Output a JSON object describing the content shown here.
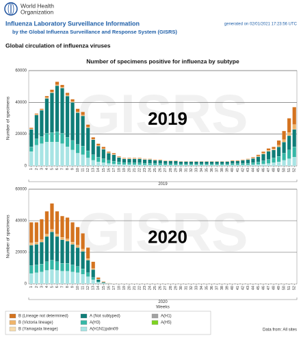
{
  "header": {
    "org_line1": "World Health",
    "org_line2": "Organization",
    "title": "Influenza Laboratory Surveillance Information",
    "subtitle": "by the Global Influenza Surveillance and Response System (GISRS)",
    "generated": "generated on 02/01/2021 17:23:56 UTC"
  },
  "section_title": "Global circulation of influenza viruses",
  "figure_title": "Number of specimens positive for influenza by subtype",
  "watermark": "GISRS",
  "legend": [
    {
      "name": "B (Lineage not determined)",
      "color": "#d4731f"
    },
    {
      "name": "B (Victoria lineage)",
      "color": "#efb46a"
    },
    {
      "name": "B (Yamagata lineage)",
      "color": "#f7dcae"
    },
    {
      "name": "A (Not subtyped)",
      "color": "#0f7d78"
    },
    {
      "name": "A(H3)",
      "color": "#35b7a6"
    },
    {
      "name": "A(H1N1)pdm09",
      "color": "#a8e4e4"
    },
    {
      "name": "A(H1)",
      "color": "#a3a3a3"
    },
    {
      "name": "A(H5)",
      "color": "#7ed321"
    }
  ],
  "footer": "Data from: All sites",
  "chart_data": [
    {
      "type": "bar",
      "stacked": true,
      "annotation": "2019",
      "xlabel": "2019",
      "ylabel": "Number of specimens",
      "categories": [
        "1",
        "2",
        "3",
        "4",
        "5",
        "6",
        "7",
        "8",
        "9",
        "10",
        "11",
        "12",
        "13",
        "14",
        "15",
        "16",
        "17",
        "18",
        "19",
        "20",
        "21",
        "22",
        "23",
        "24",
        "25",
        "26",
        "27",
        "28",
        "29",
        "30",
        "31",
        "32",
        "33",
        "34",
        "35",
        "36",
        "37",
        "38",
        "39",
        "40",
        "41",
        "42",
        "43",
        "44",
        "45",
        "46",
        "47",
        "48",
        "49",
        "50",
        "51",
        "52"
      ],
      "ylim": [
        0,
        60000
      ],
      "yticks": [
        0,
        20000,
        40000,
        60000
      ],
      "grid": true,
      "series": [
        {
          "color": "#a8e4e4",
          "values": [
            9000,
            13000,
            14000,
            15000,
            15000,
            15000,
            14000,
            12000,
            10000,
            8000,
            7000,
            5000,
            3500,
            2500,
            2000,
            1500,
            1200,
            1000,
            800,
            800,
            700,
            700,
            600,
            600,
            500,
            500,
            400,
            400,
            400,
            400,
            400,
            400,
            400,
            400,
            400,
            400,
            400,
            400,
            400,
            500,
            500,
            500,
            600,
            700,
            900,
            1200,
            1500,
            2000,
            2500,
            3500,
            4500,
            5500
          ]
        },
        {
          "color": "#35b7a6",
          "values": [
            3000,
            4000,
            4500,
            5500,
            6000,
            6500,
            6500,
            6000,
            6000,
            5500,
            5500,
            4500,
            3500,
            3000,
            2500,
            2000,
            1800,
            1500,
            1200,
            1200,
            1200,
            1200,
            1100,
            1100,
            1000,
            1000,
            900,
            900,
            900,
            800,
            800,
            800,
            800,
            800,
            800,
            800,
            800,
            800,
            800,
            900,
            900,
            1000,
            1100,
            1300,
            1600,
            2000,
            2500,
            3000,
            3500,
            4500,
            5500,
            6500
          ]
        },
        {
          "color": "#0f7d78",
          "values": [
            11000,
            15000,
            16500,
            22000,
            25000,
            29000,
            28500,
            26000,
            24000,
            20000,
            19000,
            14500,
            9500,
            7000,
            6000,
            4500,
            4000,
            2800,
            2400,
            2400,
            2500,
            2500,
            2300,
            2300,
            2000,
            2000,
            1800,
            1800,
            1800,
            1500,
            1500,
            1500,
            1500,
            1500,
            1500,
            1500,
            1500,
            1500,
            1500,
            1700,
            1700,
            2000,
            2200,
            2700,
            3300,
            4300,
            5200,
            5000,
            6000,
            7000,
            9000,
            11000
          ]
        },
        {
          "color": "#efb46a",
          "values": [
            300,
            400,
            400,
            500,
            500,
            500,
            500,
            500,
            500,
            500,
            500,
            400,
            300,
            300,
            300,
            300,
            300,
            200,
            200,
            200,
            200,
            200,
            200,
            200,
            200,
            200,
            200,
            200,
            200,
            100,
            100,
            100,
            100,
            100,
            100,
            100,
            100,
            100,
            100,
            100,
            100,
            200,
            300,
            300,
            400,
            500,
            600,
            700,
            1000,
            1500,
            2000,
            3000
          ]
        },
        {
          "color": "#d4731f",
          "values": [
            700,
            600,
            600,
            1000,
            1500,
            2000,
            1500,
            1500,
            1500,
            2000,
            2000,
            1600,
            1200,
            1200,
            1200,
            700,
            700,
            500,
            400,
            400,
            400,
            400,
            300,
            300,
            300,
            300,
            200,
            200,
            200,
            200,
            200,
            200,
            200,
            200,
            200,
            200,
            200,
            200,
            200,
            300,
            300,
            300,
            300,
            500,
            800,
            1000,
            1200,
            1300,
            3000,
            5500,
            9000,
            11000
          ]
        }
      ]
    },
    {
      "type": "bar",
      "stacked": true,
      "annotation": "2020",
      "year_label": "2020",
      "xlabel": "Weeks",
      "ylabel": "Number of specimens",
      "categories": [
        "1",
        "2",
        "3",
        "4",
        "5",
        "6",
        "7",
        "8",
        "9",
        "10",
        "11",
        "12",
        "13",
        "14",
        "15",
        "16",
        "17",
        "18",
        "19",
        "20",
        "21",
        "22",
        "23",
        "24",
        "25",
        "26",
        "27",
        "28",
        "29",
        "30",
        "31",
        "32",
        "33",
        "34",
        "35",
        "36",
        "37",
        "38",
        "39",
        "40",
        "41",
        "42",
        "43",
        "44",
        "45",
        "46",
        "47",
        "48",
        "49",
        "50",
        "51",
        "52"
      ],
      "ylim": [
        0,
        60000
      ],
      "yticks": [
        0,
        20000,
        40000,
        60000
      ],
      "grid": true,
      "series": [
        {
          "color": "#a8e4e4",
          "values": [
            6500,
            7000,
            7500,
            8500,
            9000,
            8500,
            8000,
            8000,
            7500,
            7000,
            6000,
            4500,
            2500,
            800,
            300,
            100,
            50,
            50,
            50,
            50,
            50,
            50,
            50,
            50,
            50,
            50,
            50,
            50,
            50,
            50,
            50,
            50,
            50,
            50,
            50,
            50,
            50,
            50,
            50,
            50,
            50,
            50,
            50,
            50,
            50,
            50,
            50,
            50,
            50,
            50,
            50,
            50
          ]
        },
        {
          "color": "#35b7a6",
          "values": [
            5000,
            5000,
            5000,
            5500,
            6000,
            5500,
            5000,
            5000,
            4500,
            4000,
            3500,
            2500,
            1500,
            400,
            150,
            50,
            20,
            20,
            20,
            20,
            20,
            20,
            20,
            20,
            20,
            20,
            20,
            20,
            20,
            20,
            20,
            20,
            20,
            20,
            20,
            20,
            20,
            20,
            20,
            20,
            20,
            20,
            20,
            20,
            20,
            20,
            20,
            20,
            20,
            20,
            20,
            20
          ]
        },
        {
          "color": "#0f7d78",
          "values": [
            13000,
            13000,
            14000,
            16000,
            18000,
            16000,
            15000,
            14000,
            13000,
            12000,
            11000,
            8000,
            5000,
            1500,
            600,
            200,
            80,
            80,
            80,
            80,
            80,
            80,
            80,
            80,
            80,
            80,
            80,
            80,
            80,
            80,
            80,
            80,
            80,
            80,
            80,
            80,
            80,
            80,
            80,
            80,
            80,
            80,
            80,
            80,
            80,
            80,
            80,
            80,
            80,
            80,
            80,
            80
          ]
        },
        {
          "color": "#efb46a",
          "values": [
            1500,
            1500,
            1500,
            1500,
            1500,
            1500,
            1500,
            1500,
            1500,
            1500,
            1500,
            1000,
            700,
            200,
            50,
            20,
            10,
            10,
            10,
            10,
            10,
            10,
            10,
            10,
            10,
            10,
            10,
            10,
            10,
            10,
            10,
            10,
            10,
            10,
            10,
            10,
            10,
            10,
            10,
            10,
            10,
            10,
            10,
            10,
            10,
            10,
            10,
            10,
            10,
            10,
            10,
            10
          ]
        },
        {
          "color": "#d4731f",
          "values": [
            13000,
            12500,
            13000,
            14500,
            16500,
            14500,
            13500,
            13500,
            12500,
            11500,
            10000,
            7000,
            4300,
            1100,
            400,
            130,
            40,
            40,
            40,
            40,
            40,
            40,
            40,
            40,
            40,
            40,
            40,
            40,
            40,
            40,
            40,
            40,
            40,
            40,
            40,
            40,
            40,
            40,
            40,
            40,
            40,
            40,
            40,
            40,
            40,
            40,
            40,
            40,
            40,
            40,
            40,
            40
          ]
        }
      ]
    }
  ]
}
